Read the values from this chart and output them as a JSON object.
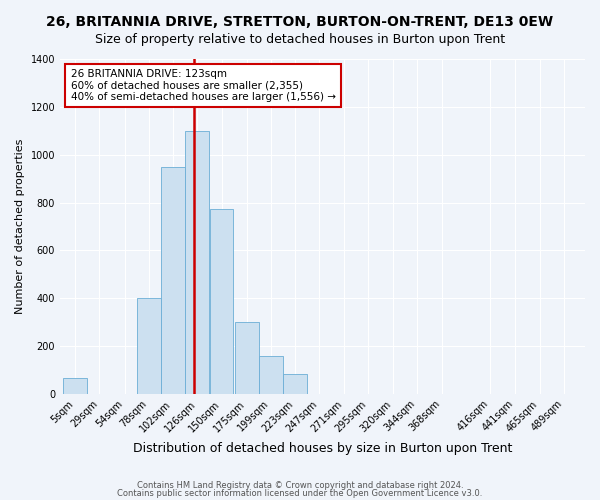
{
  "title": "26, BRITANNIA DRIVE, STRETTON, BURTON-ON-TRENT, DE13 0EW",
  "subtitle": "Size of property relative to detached houses in Burton upon Trent",
  "xlabel": "Distribution of detached houses by size in Burton upon Trent",
  "ylabel": "Number of detached properties",
  "annotation_title": "26 BRITANNIA DRIVE: 123sqm",
  "annotation_line1": "60% of detached houses are smaller (2,355)",
  "annotation_line2": "40% of semi-detached houses are larger (1,556) →",
  "property_size": 123,
  "red_line_x": 123,
  "bar_edges": [
    5,
    29,
    54,
    78,
    102,
    126,
    150,
    175,
    199,
    223,
    247,
    271,
    295,
    320,
    344,
    368,
    416,
    441,
    465,
    489
  ],
  "bar_heights": [
    65,
    0,
    0,
    400,
    950,
    1100,
    775,
    300,
    160,
    85,
    0,
    0,
    0,
    0,
    0,
    0,
    0,
    0,
    0,
    0
  ],
  "bar_color": "#cce0f0",
  "bar_edge_color": "#6baed6",
  "red_line_color": "#cc0000",
  "annotation_box_color": "#ffffff",
  "annotation_box_edge": "#cc0000",
  "background_color": "#f0f4fa",
  "grid_color": "#ffffff",
  "title_fontsize": 10,
  "subtitle_fontsize": 9,
  "ylabel_fontsize": 8,
  "xlabel_fontsize": 9,
  "tick_fontsize": 7,
  "ylim": [
    0,
    1400
  ],
  "footer1": "Contains HM Land Registry data © Crown copyright and database right 2024.",
  "footer2": "Contains public sector information licensed under the Open Government Licence v3.0."
}
